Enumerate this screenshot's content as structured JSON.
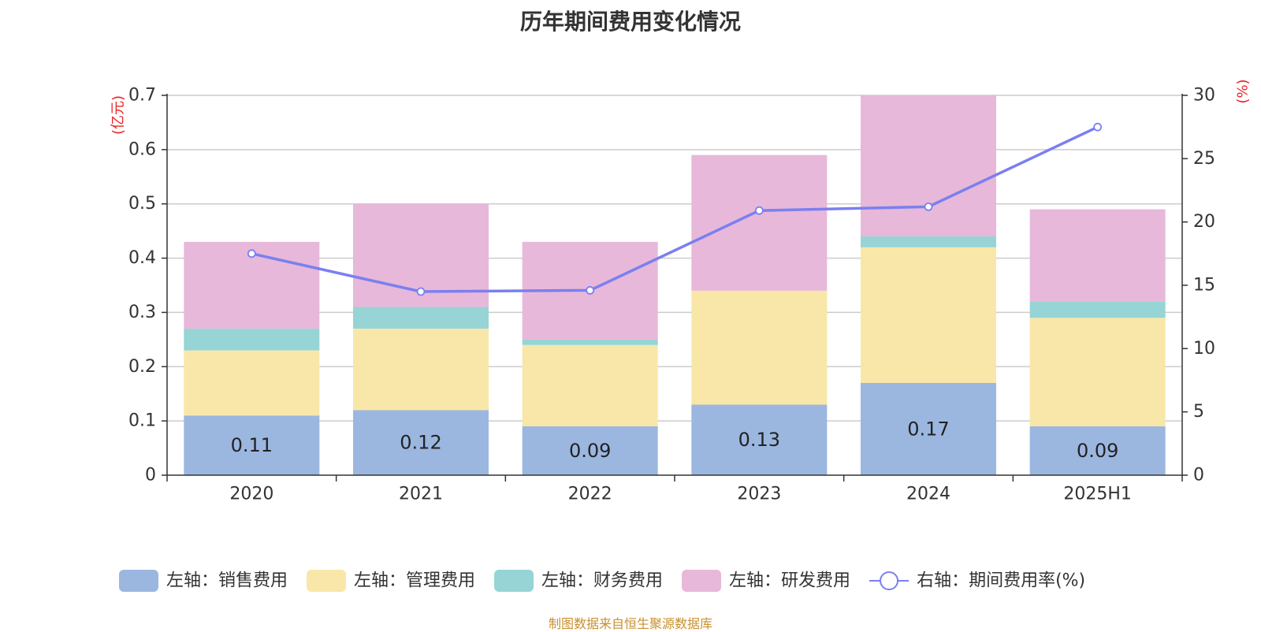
{
  "title": "历年期间费用变化情况",
  "source": "制图数据来自恒生聚源数据库",
  "chart_data": {
    "type": "bar",
    "stacked": true,
    "title": "历年期间费用变化情况",
    "categories": [
      "2020",
      "2021",
      "2022",
      "2023",
      "2024",
      "2025H1"
    ],
    "left_axis": {
      "unit": "(亿元)",
      "ylim": [
        0,
        0.7
      ],
      "ticks": [
        "0",
        "0.1",
        "0.2",
        "0.3",
        "0.4",
        "0.5",
        "0.6",
        "0.7"
      ]
    },
    "right_axis": {
      "unit": "(%)",
      "ylim": [
        0,
        30
      ],
      "ticks": [
        "0",
        "5",
        "10",
        "15",
        "20",
        "25",
        "30"
      ]
    },
    "series": [
      {
        "name": "左轴：销售费用",
        "type": "bar",
        "axis": "left",
        "color": "#9bb7e0",
        "values": [
          0.11,
          0.12,
          0.09,
          0.13,
          0.17,
          0.09
        ],
        "labels": [
          "0.11",
          "0.12",
          "0.09",
          "0.13",
          "0.17",
          "0.09"
        ]
      },
      {
        "name": "左轴：管理费用",
        "type": "bar",
        "axis": "left",
        "color": "#f8e7a8",
        "values": [
          0.12,
          0.15,
          0.15,
          0.21,
          0.25,
          0.2
        ]
      },
      {
        "name": "左轴：财务费用",
        "type": "bar",
        "axis": "left",
        "color": "#96d4d6",
        "values": [
          0.04,
          0.04,
          0.01,
          0.0,
          0.02,
          0.03
        ]
      },
      {
        "name": "左轴：研发费用",
        "type": "bar",
        "axis": "left",
        "color": "#e7b8d9",
        "values": [
          0.16,
          0.19,
          0.18,
          0.25,
          0.26,
          0.17
        ]
      },
      {
        "name": "右轴：期间费用率(%)",
        "type": "line",
        "axis": "right",
        "color": "#7b7ff0",
        "values": [
          17.5,
          14.5,
          14.6,
          20.9,
          21.2,
          27.5
        ]
      }
    ],
    "grid": true,
    "legend_position": "bottom",
    "colors": {
      "axis_unit": "#e8262a",
      "grid": "#cccccc",
      "axis": "#333333"
    }
  }
}
